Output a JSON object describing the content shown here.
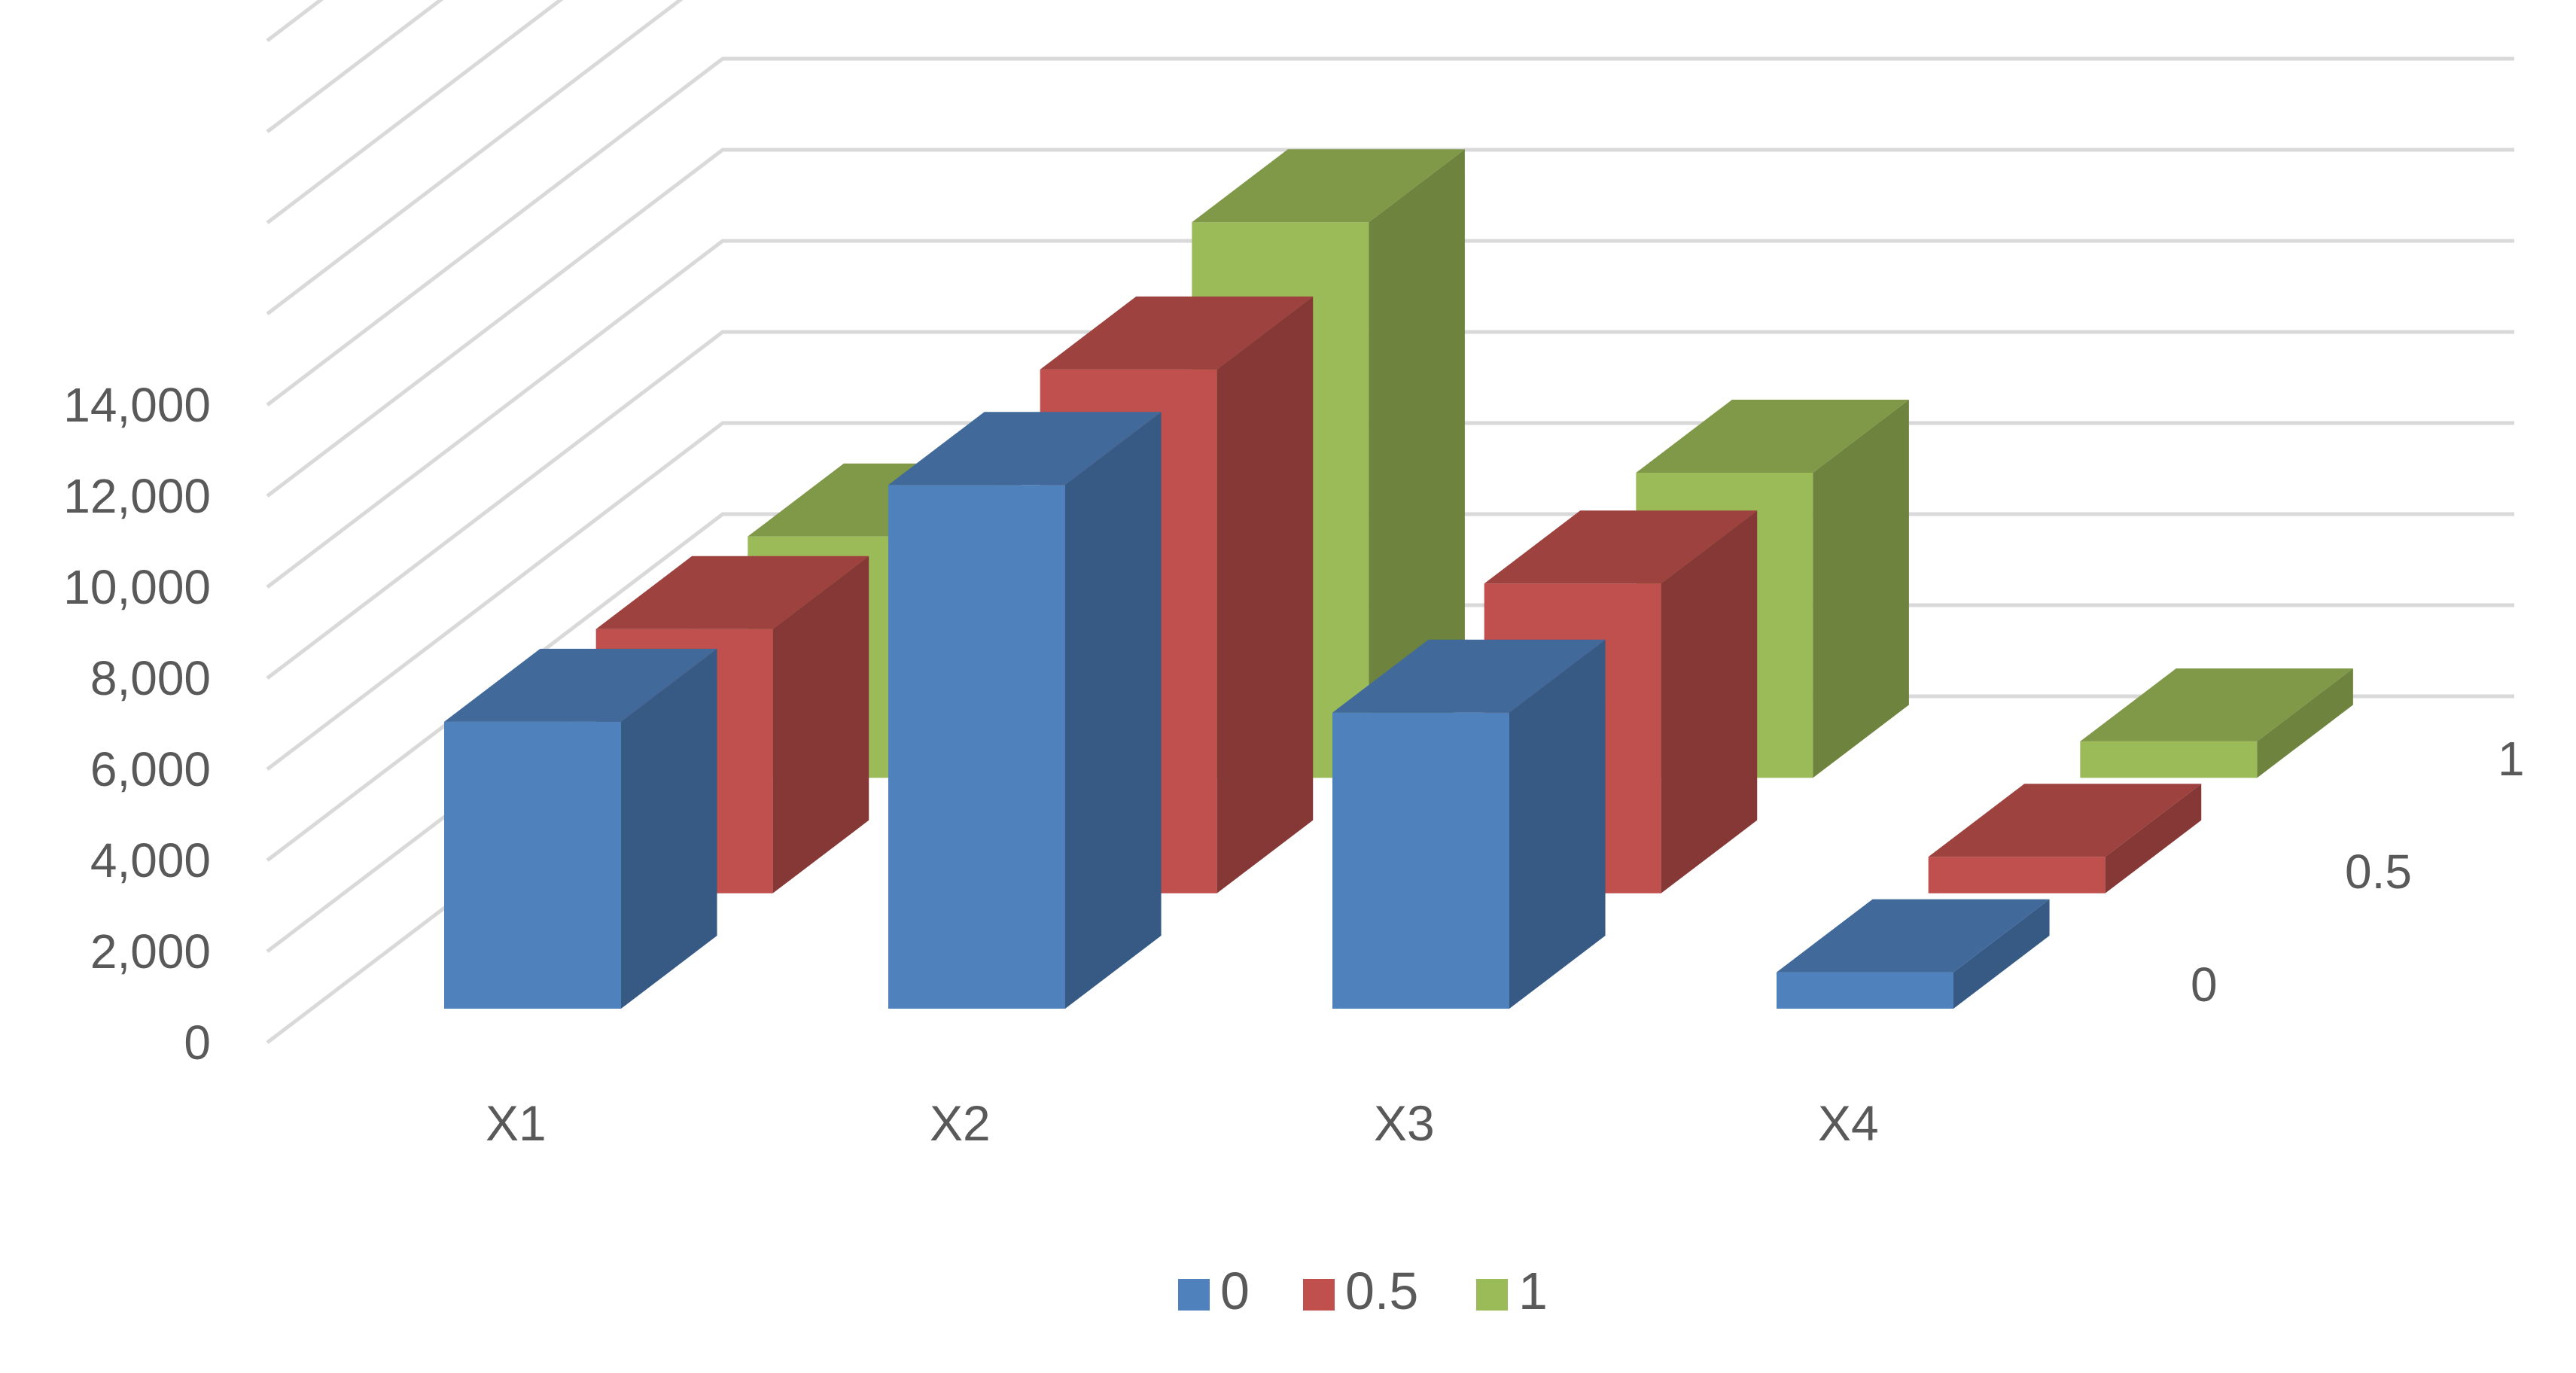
{
  "chart_data": {
    "type": "bar",
    "title": "",
    "xlabel": "",
    "ylabel": "",
    "categories": [
      "X1",
      "X2",
      "X3",
      "X4"
    ],
    "series": [
      {
        "name": "0",
        "values": [
          6300,
          11500,
          6500,
          800
        ],
        "color": "#4f81bd"
      },
      {
        "name": "0.5",
        "values": [
          5800,
          11500,
          6800,
          800
        ],
        "color": "#c0504d"
      },
      {
        "name": "1",
        "values": [
          5300,
          12200,
          6700,
          800
        ],
        "color": "#9bbb59"
      }
    ],
    "ylim": [
      0,
      14000
    ],
    "y_ticks": [
      "0",
      "2,000",
      "4,000",
      "6,000",
      "8,000",
      "10,000",
      "12,000",
      "14,000"
    ],
    "depth_labels": [
      "0",
      "0.5",
      "1"
    ],
    "grid": true,
    "legend_position": "bottom",
    "style": "3d-column"
  }
}
